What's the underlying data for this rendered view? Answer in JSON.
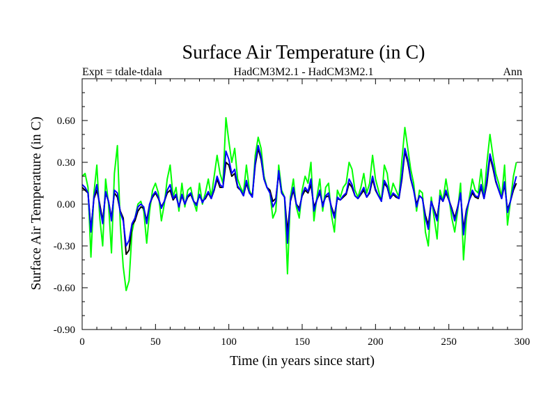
{
  "chart_data": {
    "type": "line",
    "title": "Surface Air Temperature (in C)",
    "subtitle_left": "Expt = tdale-tdala",
    "subtitle_center": "HadCM3M2.1 - HadCM3M2.1",
    "subtitle_right": "Ann",
    "xlabel": "Time (in years since start)",
    "ylabel": "Surface Air Temperature (in C)",
    "xlim": [
      0,
      300
    ],
    "ylim": [
      -0.9,
      0.9
    ],
    "x_ticks": [
      0,
      50,
      100,
      150,
      200,
      250,
      300
    ],
    "x_tick_labels": [
      "0",
      "50",
      "100",
      "150",
      "200",
      "250",
      "300"
    ],
    "y_ticks": [
      -0.9,
      -0.6,
      -0.3,
      0.0,
      0.3,
      0.6
    ],
    "y_tick_labels": [
      "-0.90",
      "-0.60",
      "-0.30",
      "0.00",
      "0.30",
      "0.60"
    ],
    "x_step": 2,
    "series": [
      {
        "name": "green",
        "color": "#00ff00",
        "values": [
          0.2,
          0.22,
          0.12,
          -0.38,
          0.08,
          0.28,
          -0.1,
          -0.3,
          0.18,
          0.0,
          -0.35,
          0.22,
          0.42,
          -0.15,
          -0.45,
          -0.62,
          -0.55,
          -0.2,
          -0.1,
          0.0,
          0.02,
          -0.05,
          -0.28,
          -0.05,
          0.1,
          0.15,
          0.08,
          -0.12,
          0.0,
          0.18,
          0.28,
          0.05,
          0.12,
          -0.05,
          0.15,
          -0.02,
          0.1,
          0.12,
          0.02,
          -0.05,
          0.15,
          0.0,
          0.08,
          0.18,
          0.05,
          0.2,
          0.35,
          0.22,
          0.15,
          0.62,
          0.45,
          0.3,
          0.4,
          0.18,
          0.12,
          0.08,
          0.28,
          0.1,
          0.05,
          0.35,
          0.48,
          0.4,
          0.2,
          0.12,
          0.08,
          -0.1,
          -0.05,
          0.28,
          0.1,
          0.05,
          -0.5,
          0.05,
          0.18,
          -0.02,
          -0.1,
          0.1,
          0.2,
          0.15,
          0.3,
          -0.12,
          0.05,
          0.18,
          -0.05,
          0.12,
          0.15,
          -0.08,
          -0.2,
          0.1,
          0.05,
          0.12,
          0.15,
          0.3,
          0.25,
          0.1,
          0.05,
          0.12,
          0.22,
          0.08,
          0.15,
          0.35,
          0.18,
          0.1,
          0.02,
          0.28,
          0.22,
          0.05,
          0.15,
          0.1,
          0.05,
          0.32,
          0.55,
          0.4,
          0.25,
          0.15,
          -0.05,
          0.1,
          0.08,
          -0.2,
          -0.3,
          0.05,
          -0.1,
          -0.25,
          0.1,
          0.02,
          0.18,
          0.05,
          -0.1,
          -0.2,
          -0.05,
          0.15,
          -0.4,
          -0.1,
          0.05,
          0.18,
          0.1,
          0.08,
          0.25,
          0.05,
          0.3,
          0.5,
          0.35,
          0.22,
          0.15,
          0.05,
          0.28,
          -0.15,
          0.02,
          0.2,
          0.3
        ]
      },
      {
        "name": "black",
        "color": "#000000",
        "values": [
          0.12,
          0.1,
          0.08,
          -0.18,
          0.04,
          0.1,
          0.0,
          -0.12,
          0.08,
          0.02,
          -0.1,
          0.08,
          0.05,
          -0.05,
          -0.1,
          -0.36,
          -0.33,
          -0.15,
          -0.12,
          -0.05,
          -0.02,
          -0.03,
          -0.12,
          0.0,
          0.05,
          0.08,
          0.04,
          -0.02,
          0.02,
          0.08,
          0.1,
          0.03,
          0.06,
          -0.02,
          0.06,
          0.0,
          0.05,
          0.07,
          0.02,
          0.0,
          0.06,
          0.02,
          0.04,
          0.08,
          0.04,
          0.1,
          0.18,
          0.12,
          0.12,
          0.3,
          0.28,
          0.2,
          0.22,
          0.12,
          0.1,
          0.06,
          0.15,
          0.08,
          0.06,
          0.28,
          0.4,
          0.32,
          0.18,
          0.12,
          0.1,
          0.02,
          0.04,
          0.22,
          0.08,
          0.05,
          -0.2,
          0.02,
          0.1,
          0.0,
          -0.03,
          0.06,
          0.1,
          0.08,
          0.14,
          -0.02,
          0.03,
          0.08,
          0.0,
          0.05,
          0.06,
          -0.02,
          -0.08,
          0.04,
          0.03,
          0.05,
          0.07,
          0.15,
          0.12,
          0.06,
          0.04,
          0.07,
          0.1,
          0.05,
          0.08,
          0.18,
          0.1,
          0.06,
          0.03,
          0.15,
          0.12,
          0.04,
          0.07,
          0.05,
          0.04,
          0.18,
          0.38,
          0.3,
          0.18,
          0.1,
          0.0,
          0.06,
          0.04,
          -0.08,
          -0.15,
          0.02,
          -0.04,
          -0.1,
          0.05,
          0.02,
          0.08,
          0.03,
          -0.03,
          -0.1,
          -0.02,
          0.07,
          -0.18,
          -0.04,
          0.03,
          0.08,
          0.05,
          0.04,
          0.12,
          0.04,
          0.15,
          0.34,
          0.26,
          0.16,
          0.1,
          0.04,
          0.14,
          -0.04,
          0.02,
          0.1,
          0.15
        ]
      },
      {
        "name": "blue",
        "color": "#0000ff",
        "values": [
          0.14,
          0.12,
          0.08,
          -0.2,
          0.05,
          0.14,
          -0.02,
          -0.14,
          0.09,
          0.02,
          -0.12,
          0.1,
          0.08,
          -0.06,
          -0.12,
          -0.3,
          -0.26,
          -0.14,
          -0.1,
          -0.02,
          0.0,
          -0.02,
          -0.14,
          0.0,
          0.06,
          0.09,
          0.05,
          -0.03,
          0.02,
          0.1,
          0.14,
          0.04,
          0.07,
          -0.02,
          0.07,
          0.0,
          0.06,
          0.08,
          0.02,
          -0.01,
          0.07,
          0.01,
          0.05,
          0.09,
          0.04,
          0.11,
          0.2,
          0.14,
          0.12,
          0.38,
          0.32,
          0.22,
          0.25,
          0.13,
          0.1,
          0.06,
          0.17,
          0.08,
          0.05,
          0.3,
          0.42,
          0.34,
          0.18,
          0.12,
          0.08,
          -0.02,
          0.02,
          0.24,
          0.08,
          0.05,
          -0.28,
          0.03,
          0.12,
          0.0,
          -0.05,
          0.07,
          0.12,
          0.09,
          0.18,
          -0.05,
          0.03,
          0.1,
          -0.02,
          0.06,
          0.08,
          -0.03,
          -0.1,
          0.05,
          0.03,
          0.06,
          0.08,
          0.18,
          0.14,
          0.06,
          0.04,
          0.08,
          0.12,
          0.05,
          0.09,
          0.2,
          0.11,
          0.06,
          0.02,
          0.17,
          0.13,
          0.04,
          0.08,
          0.06,
          0.04,
          0.2,
          0.4,
          0.32,
          0.19,
          0.1,
          -0.02,
          0.06,
          0.04,
          -0.1,
          -0.18,
          0.02,
          -0.05,
          -0.12,
          0.06,
          0.02,
          0.1,
          0.03,
          -0.04,
          -0.12,
          -0.03,
          0.08,
          -0.22,
          -0.05,
          0.03,
          0.1,
          0.06,
          0.05,
          0.14,
          0.04,
          0.18,
          0.36,
          0.28,
          0.17,
          0.1,
          0.04,
          0.16,
          -0.06,
          0.02,
          0.12,
          0.2
        ]
      }
    ]
  }
}
